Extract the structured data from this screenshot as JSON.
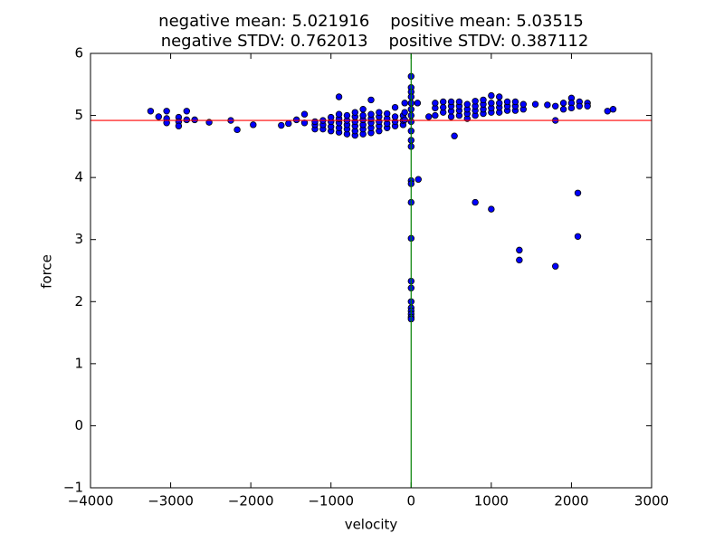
{
  "chart_data": {
    "type": "scatter",
    "title_lines": [
      "negative mean: 5.021916    positive mean: 5.03515",
      "negative STDV: 0.762013    positive STDV: 0.387112"
    ],
    "xlabel": "velocity",
    "ylabel": "force",
    "xlim": [
      -4000,
      3000
    ],
    "xticks": [
      {
        "value": -4000,
        "label": "−4000"
      },
      {
        "value": -3000,
        "label": "−3000"
      },
      {
        "value": -2000,
        "label": "−2000"
      },
      {
        "value": -1000,
        "label": "−1000"
      },
      0,
      1000,
      2000,
      3000
    ],
    "ylim": [
      -1,
      6
    ],
    "yticks": [
      {
        "value": -1,
        "label": "−1"
      },
      0,
      1,
      2,
      3,
      4,
      5,
      6
    ],
    "grid": false,
    "color": "#0000ff",
    "reference_lines": [
      {
        "axis": "y",
        "value": 4.92,
        "color": "#ff0000"
      },
      {
        "axis": "x",
        "value": 0,
        "color": "#008000"
      }
    ],
    "x": [
      -3250,
      -3150,
      -3050,
      -3050,
      -3050,
      -2900,
      -2900,
      -2900,
      -2800,
      -2800,
      -2700,
      -2520,
      -2250,
      -2170,
      -1970,
      -1620,
      -1530,
      -1430,
      -1330,
      -1330,
      -1200,
      -1200,
      -1200,
      -1100,
      -1100,
      -1100,
      -1000,
      -1000,
      -1000,
      -1000,
      -900,
      -900,
      -900,
      -900,
      -900,
      -900,
      -800,
      -800,
      -800,
      -800,
      -800,
      -700,
      -700,
      -700,
      -700,
      -700,
      -700,
      -600,
      -600,
      -600,
      -600,
      -600,
      -600,
      -500,
      -500,
      -500,
      -500,
      -500,
      -500,
      -400,
      -400,
      -400,
      -400,
      -400,
      -300,
      -300,
      -300,
      -300,
      -200,
      -200,
      -200,
      -200,
      -100,
      -100,
      -100,
      0,
      0,
      0,
      0,
      0,
      0,
      0,
      0,
      0,
      0,
      0,
      0,
      0,
      0,
      0,
      0,
      0,
      0,
      0,
      0,
      0,
      0,
      0,
      -80,
      -80,
      -80,
      90,
      80,
      220,
      540,
      1800,
      300,
      300,
      300,
      400,
      400,
      400,
      500,
      500,
      500,
      500,
      600,
      600,
      600,
      600,
      700,
      700,
      700,
      700,
      800,
      800,
      800,
      800,
      900,
      900,
      900,
      900,
      1000,
      1000,
      1000,
      1000,
      1100,
      1100,
      1100,
      1100,
      1200,
      1200,
      1200,
      1300,
      1300,
      1300,
      1400,
      1400,
      800,
      1000,
      1350,
      1350,
      1800,
      2080,
      2080,
      1700,
      1800,
      1900,
      1900,
      2000,
      2000,
      2000,
      2100,
      2100,
      2200,
      2200,
      2450,
      2520,
      1550
    ],
    "y": [
      5.07,
      4.98,
      5.07,
      4.95,
      4.88,
      4.97,
      4.9,
      4.83,
      5.07,
      4.93,
      4.93,
      4.89,
      4.92,
      4.77,
      4.85,
      4.84,
      4.87,
      4.93,
      5.02,
      4.88,
      4.78,
      4.85,
      4.9,
      4.78,
      4.85,
      4.92,
      4.75,
      4.82,
      4.9,
      4.97,
      4.73,
      4.8,
      4.88,
      4.95,
      5.02,
      5.3,
      4.7,
      4.78,
      4.85,
      4.92,
      5.0,
      4.68,
      4.75,
      4.83,
      4.9,
      4.98,
      5.05,
      4.7,
      4.78,
      4.85,
      4.93,
      5.0,
      5.1,
      4.72,
      4.8,
      4.88,
      4.95,
      5.02,
      5.25,
      4.75,
      4.83,
      4.9,
      4.98,
      5.05,
      4.8,
      4.87,
      4.95,
      5.03,
      4.83,
      4.9,
      4.98,
      5.13,
      4.85,
      4.92,
      5.0,
      5.63,
      5.45,
      5.38,
      5.3,
      5.2,
      5.1,
      5.0,
      4.9,
      4.75,
      4.6,
      4.5,
      3.95,
      3.9,
      3.6,
      3.02,
      2.33,
      2.22,
      2.0,
      1.9,
      1.85,
      1.8,
      1.75,
      1.72,
      5.2,
      5.05,
      4.93,
      3.97,
      5.2,
      4.98,
      4.67,
      4.92,
      5.0,
      5.12,
      5.2,
      5.05,
      5.13,
      5.22,
      4.98,
      5.07,
      5.15,
      5.22,
      5.0,
      5.08,
      5.15,
      5.22,
      4.95,
      5.03,
      5.1,
      5.18,
      5.0,
      5.08,
      5.15,
      5.23,
      5.03,
      5.1,
      5.18,
      5.25,
      5.05,
      5.12,
      5.2,
      5.32,
      5.05,
      5.13,
      5.2,
      5.3,
      5.08,
      5.15,
      5.22,
      5.08,
      5.15,
      5.22,
      5.1,
      5.18,
      3.6,
      3.49,
      2.83,
      2.67,
      2.57,
      3.75,
      3.05,
      5.17,
      5.15,
      5.1,
      5.2,
      5.28,
      5.2,
      5.12,
      5.22,
      5.15,
      5.2,
      5.15,
      5.07,
      5.1,
      5.18
    ]
  }
}
